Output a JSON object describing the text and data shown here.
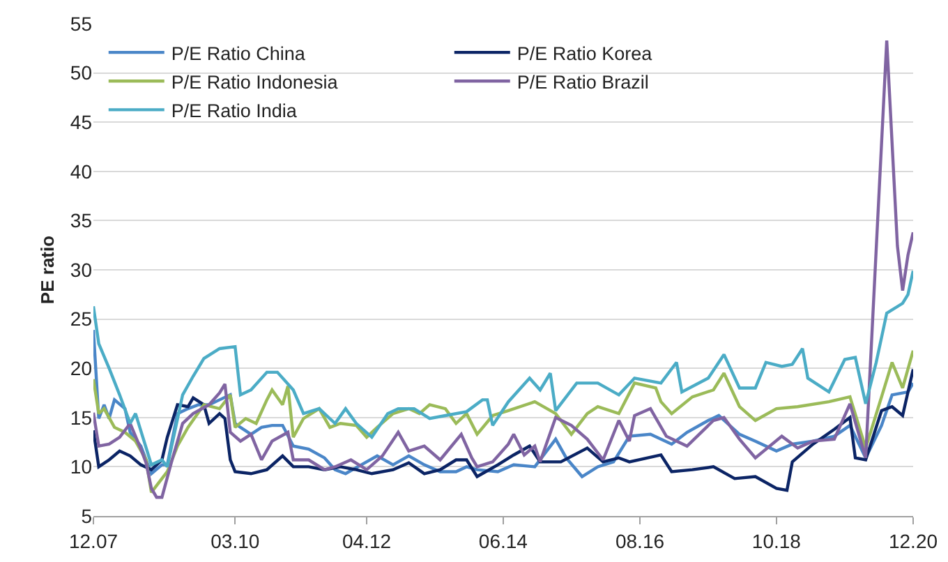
{
  "chart_data": {
    "type": "line",
    "ylabel": "PE ratio",
    "xlim": [
      "2007-12",
      "2020-12"
    ],
    "xticks": [
      {
        "value": "2007-12",
        "label": "12.07"
      },
      {
        "value": "2010-03",
        "label": "03.10"
      },
      {
        "value": "2012-04",
        "label": "04.12"
      },
      {
        "value": "2014-06",
        "label": "06.14"
      },
      {
        "value": "2016-08",
        "label": "08.16"
      },
      {
        "value": "2018-10",
        "label": "10.18"
      },
      {
        "value": "2020-12",
        "label": "12.20"
      }
    ],
    "ylim": [
      5,
      55
    ],
    "yticks": [
      5,
      10,
      15,
      20,
      25,
      30,
      35,
      40,
      45,
      50,
      55
    ],
    "grid": "y",
    "legend": "top",
    "series": [
      {
        "name": "P/E Ratio China",
        "color": "#4a86c8",
        "x": [
          "2007-12",
          "2008-01",
          "2008-02",
          "2008-03",
          "2008-04",
          "2008-06",
          "2008-07",
          "2008-09",
          "2008-11",
          "2009-01",
          "2009-02",
          "2009-04",
          "2009-06",
          "2009-08",
          "2009-10",
          "2009-12",
          "2010-02",
          "2010-03",
          "2010-04",
          "2010-06",
          "2010-08",
          "2010-10",
          "2010-12",
          "2011-02",
          "2011-05",
          "2011-08",
          "2011-10",
          "2011-12",
          "2012-03",
          "2012-06",
          "2012-09",
          "2012-12",
          "2013-03",
          "2013-06",
          "2013-09",
          "2013-11",
          "2014-01",
          "2014-05",
          "2014-08",
          "2014-12",
          "2015-04",
          "2015-06",
          "2015-09",
          "2015-12",
          "2016-03",
          "2016-06",
          "2016-10",
          "2017-02",
          "2017-05",
          "2017-09",
          "2017-11",
          "2018-03",
          "2018-06",
          "2018-10",
          "2019-01",
          "2019-05",
          "2019-09",
          "2019-12",
          "2020-03",
          "2020-06",
          "2020-08",
          "2020-11",
          "2020-12"
        ],
        "values": [
          23.9,
          14.9,
          16.3,
          14.9,
          16.8,
          15.9,
          13.5,
          12.1,
          9.3,
          10.2,
          10.2,
          15.4,
          15.9,
          16.3,
          16.3,
          16.8,
          17.3,
          14.4,
          14,
          13.3,
          14,
          14.2,
          14.2,
          12.1,
          11.8,
          10.9,
          9.7,
          9.3,
          10.2,
          11.1,
          10.2,
          11.1,
          10.2,
          9.5,
          9.5,
          10,
          9.7,
          9.5,
          10.2,
          10,
          12.8,
          10.9,
          9,
          10,
          10.5,
          13.1,
          13.3,
          12.3,
          13.5,
          14.7,
          15.2,
          13.3,
          12.6,
          11.6,
          12.3,
          12.6,
          13.1,
          14.2,
          10.9,
          14.2,
          17.3,
          17.6,
          18.5
        ]
      },
      {
        "name": "P/E Ratio Korea",
        "color": "#0b2465",
        "x": [
          "2007-12",
          "2008-01",
          "2008-03",
          "2008-05",
          "2008-07",
          "2008-09",
          "2008-11",
          "2009-01",
          "2009-02",
          "2009-04",
          "2009-06",
          "2009-07",
          "2009-09",
          "2009-10",
          "2009-12",
          "2010-01",
          "2010-02",
          "2010-03",
          "2010-06",
          "2010-09",
          "2010-12",
          "2011-02",
          "2011-05",
          "2011-08",
          "2011-11",
          "2012-02",
          "2012-05",
          "2012-09",
          "2012-12",
          "2013-03",
          "2013-06",
          "2013-09",
          "2013-11",
          "2014-01",
          "2014-05",
          "2014-08",
          "2014-11",
          "2015-01",
          "2015-05",
          "2015-10",
          "2016-01",
          "2016-04",
          "2016-06",
          "2016-12",
          "2017-02",
          "2017-06",
          "2017-10",
          "2018-02",
          "2018-06",
          "2018-10",
          "2018-12",
          "2019-01",
          "2019-05",
          "2019-09",
          "2019-12",
          "2020-01",
          "2020-03",
          "2020-06",
          "2020-08",
          "2020-10",
          "2020-12"
        ],
        "values": [
          13.7,
          10,
          10.7,
          11.6,
          11.1,
          10.2,
          9.7,
          10.7,
          13,
          16.3,
          16.1,
          17,
          16.3,
          14.4,
          15.4,
          14.9,
          10.7,
          9.5,
          9.3,
          9.7,
          11.1,
          10,
          10,
          9.7,
          10,
          9.7,
          9.3,
          9.7,
          10.4,
          9.3,
          9.7,
          10.7,
          10.7,
          9,
          10.2,
          11.2,
          12.1,
          10.5,
          10.5,
          11.9,
          10.5,
          10.9,
          10.5,
          11.2,
          9.5,
          9.7,
          10,
          8.8,
          9,
          7.8,
          7.6,
          10.5,
          12.3,
          13.8,
          15,
          10.9,
          10.7,
          15.7,
          16.1,
          15.2,
          19.9
        ]
      },
      {
        "name": "P/E Ratio Indonesia",
        "color": "#9bbb59",
        "x": [
          "2007-12",
          "2008-01",
          "2008-02",
          "2008-04",
          "2008-06",
          "2008-08",
          "2008-10",
          "2008-11",
          "2009-01",
          "2009-02",
          "2009-04",
          "2009-06",
          "2009-09",
          "2009-12",
          "2010-02",
          "2010-03",
          "2010-05",
          "2010-07",
          "2010-09",
          "2010-10",
          "2010-12",
          "2011-01",
          "2011-02",
          "2011-04",
          "2011-07",
          "2011-09",
          "2011-11",
          "2012-02",
          "2012-04",
          "2012-06",
          "2012-09",
          "2012-12",
          "2013-02",
          "2013-04",
          "2013-07",
          "2013-09",
          "2013-11",
          "2014-01",
          "2014-04",
          "2014-07",
          "2014-12",
          "2015-04",
          "2015-07",
          "2015-10",
          "2015-12",
          "2016-04",
          "2016-07",
          "2016-11",
          "2016-12",
          "2017-02",
          "2017-06",
          "2017-10",
          "2017-12",
          "2018-03",
          "2018-06",
          "2018-10",
          "2019-02",
          "2019-08",
          "2019-12",
          "2020-03",
          "2020-06",
          "2020-08",
          "2020-10",
          "2020-12"
        ],
        "values": [
          18.9,
          15.4,
          15.9,
          14,
          13.5,
          12.6,
          10.7,
          7.4,
          8.8,
          9.5,
          12.1,
          14,
          16.3,
          15.9,
          17.3,
          14,
          14.9,
          14.4,
          16.8,
          17.8,
          16.3,
          18.2,
          13,
          14.9,
          15.9,
          14,
          14.4,
          14.2,
          13,
          14,
          15.4,
          15.9,
          15.4,
          16.3,
          15.9,
          14.4,
          15.4,
          13.3,
          15.2,
          15.7,
          16.6,
          15.4,
          13.3,
          15.4,
          16.1,
          15.4,
          18.5,
          18,
          16.6,
          15.4,
          17.1,
          17.8,
          19.5,
          16.1,
          14.7,
          15.9,
          16.1,
          16.6,
          17.1,
          11.9,
          17.1,
          20.6,
          18,
          21.8
        ]
      },
      {
        "name": "P/E Ratio Brazil",
        "color": "#8064a2",
        "x": [
          "2007-12",
          "2008-01",
          "2008-03",
          "2008-05",
          "2008-07",
          "2008-09",
          "2008-10",
          "2008-11",
          "2008-12",
          "2009-01",
          "2009-03",
          "2009-05",
          "2009-07",
          "2009-10",
          "2009-12",
          "2010-01",
          "2010-02",
          "2010-04",
          "2010-06",
          "2010-08",
          "2010-10",
          "2011-01",
          "2011-02",
          "2011-05",
          "2011-08",
          "2011-10",
          "2012-01",
          "2012-04",
          "2012-07",
          "2012-10",
          "2012-12",
          "2013-03",
          "2013-06",
          "2013-10",
          "2013-12",
          "2014-01",
          "2014-04",
          "2014-07",
          "2014-08",
          "2014-10",
          "2014-12",
          "2015-01",
          "2015-04",
          "2015-07",
          "2015-10",
          "2016-01",
          "2016-04",
          "2016-06",
          "2016-07",
          "2016-10",
          "2017-01",
          "2017-05",
          "2017-10",
          "2017-12",
          "2018-03",
          "2018-06",
          "2018-11",
          "2019-02",
          "2019-05",
          "2019-09",
          "2019-12",
          "2020-03",
          "2020-07",
          "2020-09",
          "2020-10",
          "2020-11",
          "2020-12"
        ],
        "values": [
          15.5,
          12.1,
          12.3,
          13,
          14.4,
          11.8,
          10.4,
          7.8,
          6.9,
          6.9,
          10.7,
          14.4,
          15.4,
          16.3,
          17.5,
          18.4,
          13.5,
          12.6,
          13.3,
          10.7,
          12.6,
          13.5,
          10.7,
          10.7,
          9.7,
          10,
          10.7,
          9.7,
          11.1,
          13.5,
          11.6,
          12.1,
          10.7,
          13.3,
          10.9,
          10,
          10.5,
          12.3,
          13.3,
          11.2,
          12.1,
          10.5,
          15,
          14.2,
          12.8,
          10.7,
          14.7,
          12.6,
          15.2,
          15.9,
          13.1,
          12.1,
          14.7,
          15,
          12.8,
          10.9,
          13.1,
          11.9,
          12.6,
          12.8,
          16.4,
          10.9,
          53.3,
          32.4,
          27.9,
          31.5,
          33.8
        ]
      },
      {
        "name": "P/E Ratio India",
        "color": "#4bacc6",
        "x": [
          "2007-12",
          "2008-01",
          "2008-03",
          "2008-05",
          "2008-07",
          "2008-08",
          "2008-11",
          "2009-01",
          "2009-02",
          "2009-05",
          "2009-07",
          "2009-09",
          "2009-12",
          "2010-03",
          "2010-04",
          "2010-06",
          "2010-09",
          "2010-11",
          "2011-02",
          "2011-04",
          "2011-07",
          "2011-10",
          "2011-12",
          "2012-02",
          "2012-05",
          "2012-08",
          "2012-10",
          "2013-01",
          "2013-04",
          "2013-07",
          "2013-11",
          "2014-02",
          "2014-03",
          "2014-04",
          "2014-07",
          "2014-11",
          "2015-01",
          "2015-03",
          "2015-04",
          "2015-08",
          "2015-12",
          "2016-04",
          "2016-07",
          "2016-12",
          "2017-03",
          "2017-04",
          "2017-09",
          "2017-12",
          "2018-03",
          "2018-06",
          "2018-08",
          "2018-11",
          "2019-01",
          "2019-03",
          "2019-04",
          "2019-08",
          "2019-11",
          "2020-01",
          "2020-03",
          "2020-05",
          "2020-07",
          "2020-10",
          "2020-11",
          "2020-12"
        ],
        "values": [
          26.3,
          22.5,
          20,
          17.3,
          14.4,
          15.4,
          10.2,
          10.7,
          10,
          17.3,
          19.2,
          21,
          22,
          22.2,
          17.3,
          17.8,
          19.6,
          19.6,
          17.8,
          15.4,
          15.9,
          14.4,
          15.9,
          14.4,
          13,
          15.4,
          15.9,
          15.9,
          14.9,
          15.2,
          15.6,
          16.8,
          16.8,
          14.2,
          16.6,
          19,
          17.8,
          19.5,
          15.7,
          18.5,
          18.5,
          17.3,
          19,
          18.5,
          20.6,
          17.6,
          19,
          21.4,
          18,
          18,
          20.6,
          20.2,
          20.4,
          22,
          19,
          17.6,
          20.9,
          21.1,
          16.4,
          20.6,
          25.6,
          26.6,
          27.5,
          29.9
        ]
      }
    ]
  }
}
